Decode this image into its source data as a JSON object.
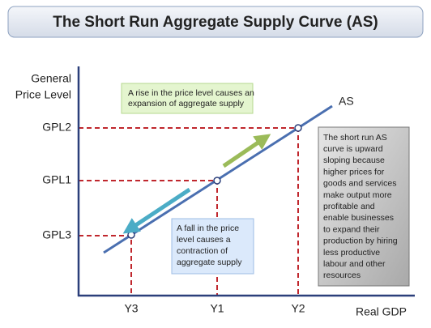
{
  "header": {
    "title": "The Short Run Aggregate Supply Curve (AS)"
  },
  "y_axis": {
    "label_lines": [
      "General",
      "Price Level"
    ],
    "levels": [
      "GPL2",
      "GPL1",
      "GPL3"
    ]
  },
  "x_axis": {
    "label": "Real GDP",
    "levels": [
      "Y3",
      "Y1",
      "Y2"
    ]
  },
  "curve": {
    "label": "AS"
  },
  "notes": {
    "rise": [
      "A rise in the price level causes an",
      "expansion of aggregate supply"
    ],
    "fall": [
      "A fall in the price",
      "level causes a",
      "contraction of",
      "aggregate supply"
    ],
    "explanation": [
      "The short run AS",
      "curve is upward",
      "sloping because",
      "higher prices for",
      "goods and services",
      "make output more",
      "profitable and",
      "enable businesses",
      "to expand their",
      "production by hiring",
      "less productive",
      "labour and other",
      "resources"
    ]
  }
}
